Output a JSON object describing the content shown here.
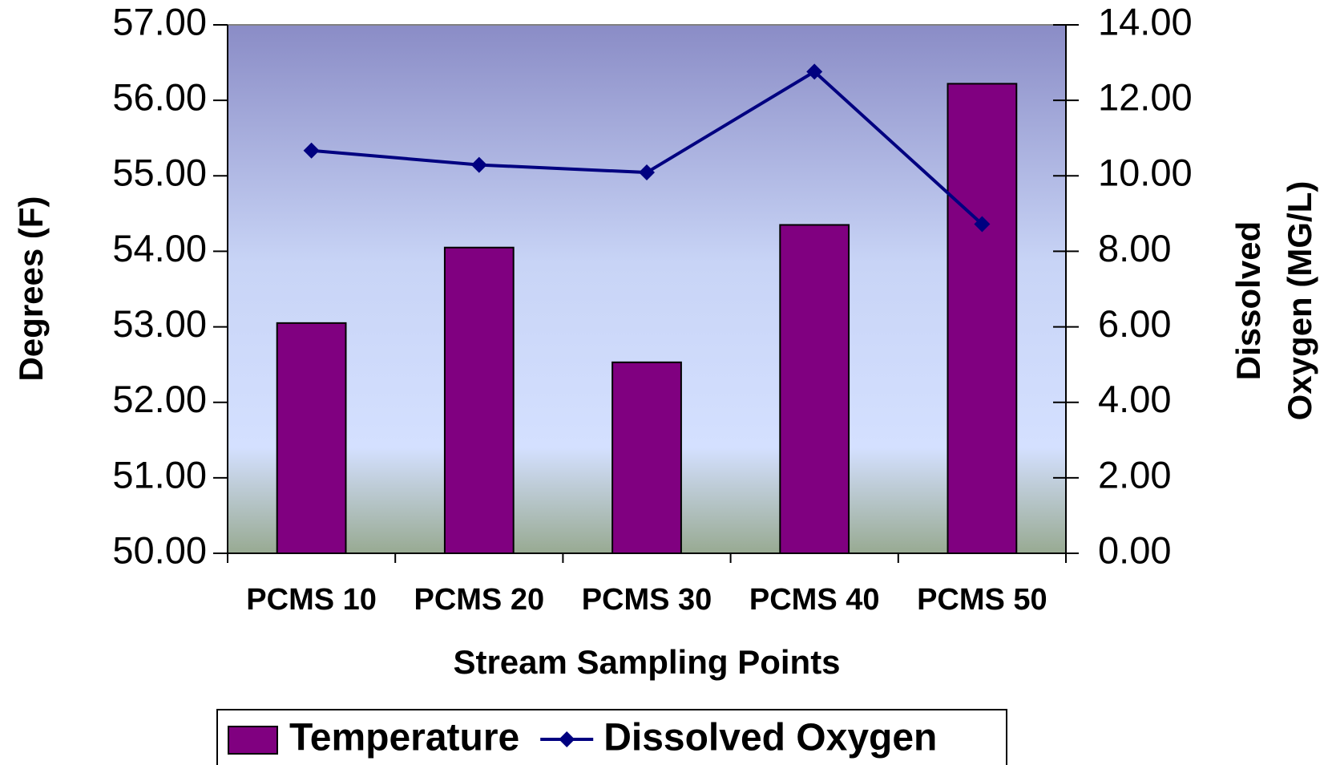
{
  "chart_data": {
    "type": "bar_line",
    "x_label": "Stream Sampling Points",
    "y_label": "Degrees (F)",
    "y2_label": [
      "Dissolved",
      "Oxygen (MG/L)"
    ],
    "categories": [
      "PCMS 10",
      "PCMS 20",
      "PCMS 30",
      "PCMS 40",
      "PCMS 50"
    ],
    "series": [
      {
        "name": "Temperature",
        "type": "bar",
        "color": "#800080",
        "values": [
          53.05,
          54.05,
          52.53,
          54.35,
          56.22
        ]
      },
      {
        "name": "Dissolved Oxygen",
        "type": "line",
        "axis": "y2",
        "color": "#000080",
        "values": [
          10.67,
          10.29,
          10.09,
          12.76,
          8.72
        ]
      }
    ],
    "ylim": [
      50,
      57
    ],
    "yticks": [
      {
        "value": 50,
        "label": "50.00"
      },
      {
        "value": 51,
        "label": "51.00"
      },
      {
        "value": 52,
        "label": "52.00"
      },
      {
        "value": 53,
        "label": "53.00"
      },
      {
        "value": 54,
        "label": "54.00"
      },
      {
        "value": 55,
        "label": "55.00"
      },
      {
        "value": 56,
        "label": "56.00"
      },
      {
        "value": 57,
        "label": "57.00"
      }
    ],
    "y2lim": [
      0,
      14
    ],
    "y2ticks": [
      {
        "value": 0,
        "label": "0.00"
      },
      {
        "value": 2,
        "label": "2.00"
      },
      {
        "value": 4,
        "label": "4.00"
      },
      {
        "value": 6,
        "label": "6.00"
      },
      {
        "value": 8,
        "label": "8.00"
      },
      {
        "value": 10,
        "label": "10.00"
      },
      {
        "value": 12,
        "label": "12.00"
      },
      {
        "value": 14,
        "label": "14.00"
      }
    ],
    "legend": "bottom"
  }
}
